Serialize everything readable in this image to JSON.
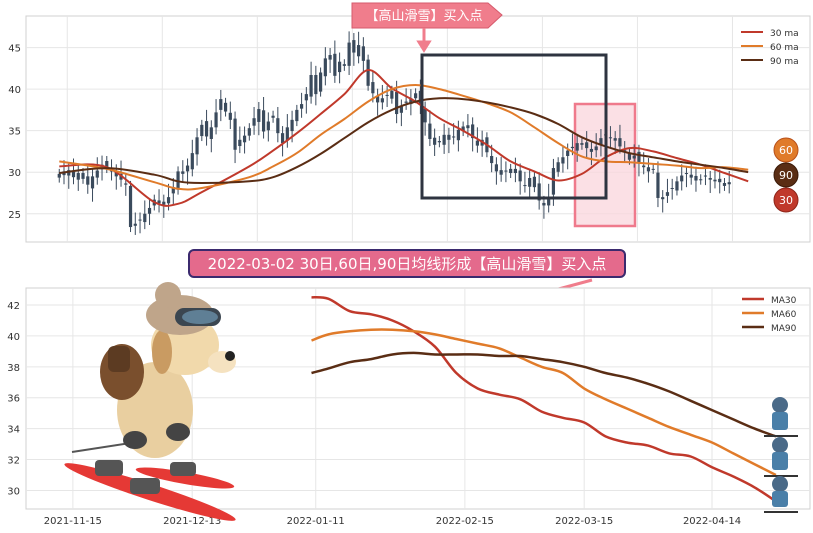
{
  "top_banner": "【高山滑雪】买入点",
  "mid_banner": "2022-03-02 30日,60日,90日均线形成【高山滑雪】买入点",
  "colors": {
    "ma30": "#c0392b",
    "ma60": "#e07b2a",
    "ma90": "#5a2d14",
    "candle": "#3a4a5c",
    "banner_fill": "#f07d8c",
    "mid_banner_fill": "#e46a8c",
    "mid_banner_border": "#3b2a6e",
    "box_dark": "#2e3440",
    "box_pink_fill": "#f9d5dc",
    "box_pink_border": "#ef7a8c",
    "grid": "#e6e6e6"
  },
  "chart_data": [
    {
      "type": "line",
      "title": "",
      "xlim": [
        -7,
        158
      ],
      "ylim": [
        21.6,
        48.8
      ],
      "y_ticks": [
        25,
        30,
        35,
        40,
        45
      ],
      "legend": {
        "placement": "top-right",
        "entries": [
          "30 ma",
          "60 ma",
          "90 ma"
        ]
      },
      "candles_close": [
        29.8,
        30.1,
        29.6,
        29.4,
        29.9,
        29.2,
        28.5,
        29.5,
        30.2,
        30.9,
        30.5,
        30.1,
        29.5,
        29.1,
        28.5,
        23.4,
        23.8,
        24.3,
        25.0,
        25.7,
        26.7,
        26.6,
        26.1,
        27.0,
        28.2,
        30.1,
        29.8,
        30.8,
        32.3,
        34.2,
        35.7,
        34.3,
        35.4,
        37.2,
        38.8,
        37.3,
        36.3,
        32.7,
        33.9,
        34.4,
        35.3,
        36.5,
        37.6,
        34.9,
        36.1,
        36.8,
        34.7,
        33.5,
        35.4,
        36.3,
        37.5,
        38.2,
        39.4,
        41.7,
        39.4,
        42.0,
        43.7,
        44.1,
        41.6,
        43.3,
        42.8,
        45.6,
        44.4,
        45.3,
        43.4,
        40.4,
        39.5,
        38.4,
        38.9,
        39.3,
        39.8,
        37.0,
        37.9,
        38.5,
        38.9,
        39.5,
        38.1,
        36.0,
        34.0,
        33.3,
        33.6,
        34.5,
        33.9,
        34.3,
        35.1,
        35.5,
        35.3,
        34.1,
        33.2,
        33.9,
        32.4,
        31.1,
        30.1,
        29.7,
        30.2,
        30.4,
        29.9,
        28.9,
        28.4,
        29.3,
        28.2,
        26.6,
        26.0,
        27.0,
        30.5,
        31.2,
        31.8,
        32.6,
        32.9,
        33.5,
        33.3,
        32.9,
        32.8,
        33.1,
        34.1,
        34.5,
        34.1,
        33.8,
        33.1,
        32.5,
        31.5,
        32.0,
        31.1,
        30.6,
        30.1,
        30.4,
        26.9,
        27.0,
        27.6,
        28.1,
        28.9,
        29.6,
        29.8,
        29.7,
        29.0,
        29.1,
        29.6,
        29.1,
        28.9,
        28.8,
        28.7,
        28.8
      ],
      "series": [
        {
          "name": "30 ma",
          "x": [
            0,
            10,
            20,
            25,
            30,
            40,
            45,
            50,
            55,
            60,
            65,
            70,
            75,
            80,
            85,
            90,
            95,
            100,
            105,
            110,
            115,
            120,
            125,
            130,
            135,
            140,
            145
          ],
          "values": [
            30.7,
            30.6,
            26.4,
            26.2,
            27.6,
            30.7,
            32.6,
            34.7,
            37.0,
            39.4,
            42.3,
            40.1,
            38.5,
            36.5,
            35.0,
            33.3,
            31.3,
            30.1,
            29.0,
            29.8,
            31.8,
            32.9,
            32.5,
            31.7,
            30.9,
            29.9,
            28.9
          ]
        },
        {
          "name": "60 ma",
          "x": [
            0,
            10,
            20,
            25,
            30,
            40,
            45,
            50,
            55,
            60,
            65,
            70,
            75,
            80,
            85,
            90,
            95,
            100,
            105,
            110,
            115,
            120,
            125,
            130,
            135,
            140,
            145
          ],
          "values": [
            31.3,
            30.4,
            28.8,
            28.0,
            28.1,
            29.4,
            30.7,
            32.3,
            34.5,
            36.4,
            38.5,
            40.0,
            40.5,
            40.0,
            39.2,
            38.3,
            37.2,
            35.4,
            33.5,
            31.9,
            31.3,
            31.2,
            31.0,
            30.8,
            30.5,
            30.6,
            30.3
          ]
        },
        {
          "name": "90 ma",
          "x": [
            0,
            10,
            20,
            25,
            30,
            40,
            45,
            50,
            55,
            60,
            65,
            70,
            75,
            80,
            85,
            90,
            95,
            100,
            105,
            110,
            115,
            120,
            125,
            130,
            135,
            140,
            145
          ],
          "values": [
            29.9,
            30.5,
            29.7,
            28.9,
            28.7,
            28.9,
            29.4,
            30.6,
            32.2,
            34.1,
            36.0,
            37.5,
            38.5,
            38.9,
            38.8,
            38.4,
            37.8,
            37.0,
            35.8,
            34.2,
            33.1,
            32.3,
            31.8,
            31.3,
            30.9,
            30.5,
            30.0
          ]
        }
      ],
      "end_badges": [
        "60",
        "90",
        "30"
      ]
    },
    {
      "type": "line",
      "title": "",
      "x_ticks": [
        "2021-11-15",
        "2021-12-13",
        "2022-01-11",
        "2022-02-15",
        "2022-03-15",
        "2022-04-14"
      ],
      "ylim": [
        28.8,
        43.1
      ],
      "y_ticks": [
        30,
        32,
        34,
        36,
        38,
        40,
        42
      ],
      "legend": {
        "placement": "top-right",
        "entries": [
          "MA30",
          "MA60",
          "MA90"
        ]
      },
      "series": [
        {
          "name": "MA30",
          "x": [
            56,
            60,
            65,
            70,
            75,
            80,
            85,
            90,
            95,
            100,
            105,
            110,
            115,
            120,
            125,
            130,
            135,
            140,
            145,
            150,
            155,
            160,
            165
          ],
          "values": [
            42.5,
            42.4,
            41.6,
            41.4,
            41.0,
            40.3,
            39.3,
            37.6,
            36.6,
            36.2,
            35.9,
            35.1,
            34.7,
            34.4,
            33.5,
            33.1,
            32.9,
            32.4,
            32.2,
            31.5,
            30.9,
            30.2,
            29.3
          ]
        },
        {
          "name": "MA60",
          "x": [
            56,
            60,
            65,
            70,
            75,
            80,
            85,
            90,
            95,
            100,
            105,
            110,
            115,
            120,
            125,
            130,
            135,
            140,
            145,
            150,
            155,
            160,
            165
          ],
          "values": [
            39.7,
            40.1,
            40.3,
            40.4,
            40.4,
            40.3,
            40.1,
            39.8,
            39.5,
            39.2,
            38.6,
            38.0,
            37.6,
            36.6,
            35.9,
            35.3,
            34.7,
            34.1,
            33.6,
            33.1,
            32.4,
            31.7,
            31.0
          ]
        },
        {
          "name": "MA90",
          "x": [
            56,
            60,
            65,
            70,
            75,
            80,
            85,
            90,
            95,
            100,
            105,
            110,
            115,
            120,
            125,
            130,
            135,
            140,
            145,
            150,
            155,
            160,
            165
          ],
          "values": [
            37.6,
            37.9,
            38.3,
            38.5,
            38.8,
            38.9,
            38.8,
            38.8,
            38.8,
            38.7,
            38.7,
            38.5,
            38.3,
            38.0,
            37.6,
            37.3,
            36.9,
            36.4,
            35.8,
            35.2,
            34.6,
            34.0,
            33.5
          ]
        }
      ]
    }
  ]
}
